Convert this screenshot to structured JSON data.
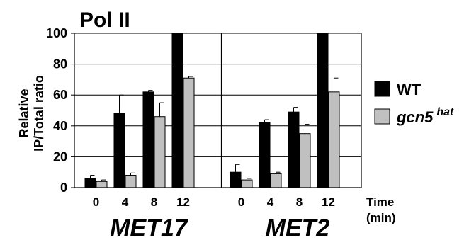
{
  "chart_data": {
    "type": "bar",
    "title": "Pol II",
    "ylabel": [
      "Relative",
      "IP/Total ratio"
    ],
    "ylim": [
      0,
      100
    ],
    "yticks": [
      "0",
      "20",
      "40",
      "60",
      "80",
      "100"
    ],
    "grid": "horizontal",
    "xlabel": [
      "Time",
      "(min)"
    ],
    "groups": [
      {
        "name": "MET17",
        "categories": [
          "0",
          "4",
          "8",
          "12"
        ],
        "series": [
          {
            "name": "WT",
            "values": [
              6,
              48,
              62,
              100
            ],
            "errors": [
              2,
              12,
              1,
              0
            ]
          },
          {
            "name": "gcn5",
            "values": [
              4,
              8,
              46,
              71
            ],
            "errors": [
              1,
              1.5,
              9,
              1
            ]
          }
        ]
      },
      {
        "name": "MET2",
        "categories": [
          "0",
          "4",
          "8",
          "12"
        ],
        "series": [
          {
            "name": "WT",
            "values": [
              10,
              42,
              49,
              100
            ],
            "errors": [
              5,
              2,
              3,
              0
            ]
          },
          {
            "name": "gcn5",
            "values": [
              5,
              9,
              35,
              62
            ],
            "errors": [
              1,
              1,
              6,
              9
            ]
          }
        ]
      }
    ],
    "legend": {
      "position": "right",
      "entries": [
        {
          "label": "WT",
          "superscript": "",
          "color": "#000000"
        },
        {
          "label": "gcn5",
          "superscript": "hat",
          "color": "#c0c0c0"
        }
      ]
    },
    "colors": {
      "WT": "#000000",
      "gcn5": "#c0c0c0"
    }
  }
}
